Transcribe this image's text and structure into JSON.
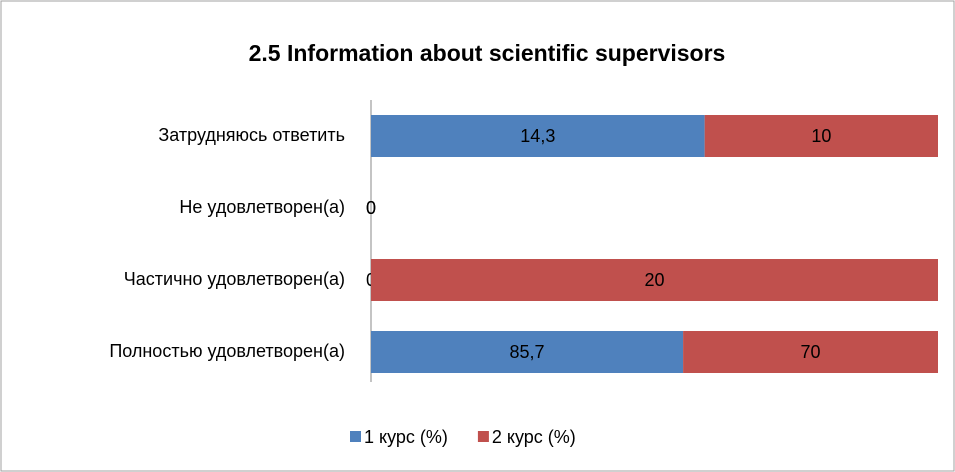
{
  "chart_data": {
    "type": "bar",
    "orientation": "horizontal",
    "stacked": "percent",
    "title": "2.5 Information about scientific supervisors",
    "categories": [
      "Затрудняюсь ответить",
      "Не удовлетворен(а)",
      "Частично удовлетворен(а)",
      "Полностью удовлетворен(а)"
    ],
    "series": [
      {
        "name": "1 курс (%)",
        "color": "#4f81bd",
        "values": [
          14.3,
          0,
          0,
          85.7
        ],
        "value_labels": [
          "14,3",
          "0",
          "0",
          "85,7"
        ]
      },
      {
        "name": "2 курс (%)",
        "color": "#c0504d",
        "values": [
          10,
          0,
          20,
          70
        ],
        "value_labels": [
          "10",
          "0",
          "20",
          "70"
        ]
      }
    ],
    "legend": "bottom"
  }
}
